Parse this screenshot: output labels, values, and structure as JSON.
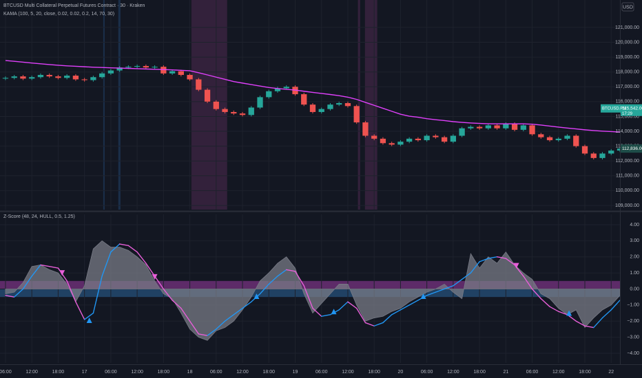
{
  "chart_data": [
    {
      "type": "candlestick",
      "title": "BTCUSD Multi Collateral Perpetual Futures Contract · 30 · Kraken",
      "currency": "USD",
      "x": [
        6,
        8,
        10,
        12,
        14,
        16,
        18,
        20,
        22,
        24,
        26,
        28,
        30,
        32,
        34,
        36,
        38,
        40,
        42,
        44,
        46,
        48,
        50,
        52,
        54,
        56,
        58,
        60,
        62,
        64,
        66,
        68,
        70,
        72,
        74,
        76,
        78,
        80,
        82,
        84,
        86,
        88,
        90,
        92,
        94,
        96,
        98,
        100,
        102,
        104,
        106,
        108,
        110,
        112,
        114,
        116,
        118,
        120,
        122,
        124,
        126,
        128,
        130,
        132,
        134,
        136,
        138,
        140,
        142,
        144,
        146
      ],
      "open": [
        117550,
        117600,
        117700,
        117550,
        117650,
        117800,
        117700,
        117600,
        117750,
        117500,
        117450,
        117650,
        117900,
        118100,
        118300,
        118350,
        118400,
        118300,
        118350,
        117900,
        118050,
        117800,
        117500,
        116800,
        116000,
        115500,
        115300,
        115200,
        115100,
        115600,
        116300,
        116700,
        116900,
        117000,
        116500,
        115800,
        115300,
        115500,
        115800,
        115900,
        115700,
        114600,
        113700,
        113500,
        113200,
        113100,
        113300,
        113500,
        113400,
        113700,
        113600,
        113300,
        113700,
        114200,
        114300,
        114200,
        114400,
        114200,
        114500,
        114100,
        114400,
        113800,
        113600,
        113400,
        113500,
        113700,
        113000,
        112500,
        112200,
        112500,
        112700
      ],
      "high": [
        117700,
        117800,
        117800,
        117750,
        117900,
        117900,
        117800,
        117850,
        117850,
        117600,
        117750,
        118000,
        118200,
        118400,
        118450,
        118500,
        118500,
        118450,
        118450,
        118150,
        118150,
        117900,
        117600,
        116900,
        116100,
        115600,
        115400,
        115300,
        115700,
        116400,
        116800,
        117000,
        117100,
        117100,
        116600,
        115900,
        115600,
        115900,
        116000,
        116000,
        115800,
        114700,
        113800,
        113600,
        113300,
        113400,
        113600,
        113600,
        113800,
        113800,
        113700,
        113800,
        114300,
        114400,
        114400,
        114500,
        114500,
        114600,
        114600,
        114500,
        114500,
        113900,
        113700,
        113600,
        113800,
        113800,
        113100,
        112600,
        112600,
        112800,
        112936
      ],
      "low": [
        117450,
        117500,
        117450,
        117450,
        117550,
        117600,
        117500,
        117500,
        117400,
        117350,
        117350,
        117550,
        117800,
        118000,
        118200,
        118250,
        118200,
        118200,
        117800,
        117800,
        117700,
        117400,
        116700,
        115900,
        115400,
        115200,
        115100,
        115000,
        115000,
        115500,
        116200,
        116600,
        116800,
        116400,
        115700,
        115200,
        115200,
        115400,
        115700,
        115600,
        114500,
        113600,
        113400,
        113100,
        113000,
        113000,
        113200,
        113300,
        113300,
        113500,
        113200,
        113200,
        113600,
        114100,
        114100,
        114100,
        114100,
        114100,
        114000,
        114000,
        113700,
        113500,
        113300,
        113300,
        113400,
        112900,
        112400,
        112100,
        112100,
        112400,
        112600
      ],
      "close": [
        117600,
        117700,
        117550,
        117650,
        117800,
        117700,
        117600,
        117750,
        117500,
        117450,
        117650,
        117900,
        118100,
        118300,
        118350,
        118400,
        118300,
        118350,
        117900,
        118050,
        117800,
        117500,
        116800,
        116000,
        115500,
        115300,
        115200,
        115100,
        115600,
        116300,
        116700,
        116900,
        117000,
        116500,
        115800,
        115300,
        115500,
        115800,
        115900,
        115700,
        114600,
        113700,
        113500,
        113200,
        113100,
        113300,
        113500,
        113400,
        113700,
        113600,
        113300,
        113700,
        114200,
        114300,
        114200,
        114400,
        114200,
        114500,
        114100,
        114400,
        113800,
        113600,
        113400,
        113500,
        113700,
        113000,
        112500,
        112200,
        112500,
        112700,
        112836
      ],
      "up_color": "#26a69a",
      "down_color": "#ef5350",
      "series": [
        {
          "name": "KAMA (100, 5, 20, close, 0.02, 0.02, 0.2, 14, 70, 30)",
          "color": "#e040fb",
          "values": [
            118770,
            118720,
            118660,
            118600,
            118550,
            118500,
            118450,
            118410,
            118380,
            118350,
            118320,
            118300,
            118280,
            118260,
            118240,
            118220,
            118200,
            118180,
            118160,
            118140,
            118110,
            118080,
            117950,
            117800,
            117650,
            117500,
            117350,
            117250,
            117150,
            117050,
            116950,
            116880,
            116830,
            116780,
            116700,
            116620,
            116550,
            116480,
            116400,
            116300,
            116150,
            115950,
            115750,
            115550,
            115350,
            115150,
            115020,
            114950,
            114850,
            114780,
            114720,
            114650,
            114600,
            114560,
            114530,
            114510,
            114500,
            114500,
            114500,
            114500,
            114480,
            114420,
            114350,
            114280,
            114220,
            114160,
            114100,
            114050,
            114010,
            113980,
            113950
          ]
        }
      ],
      "highlights": [
        {
          "from": 28.27,
          "to": 28.6,
          "color": "#1c3350"
        },
        {
          "from": 31.7,
          "to": 32.2,
          "color": "#1c3350"
        },
        {
          "from": 48.35,
          "to": 56.5,
          "color": "#3a2340"
        },
        {
          "from": 86.3,
          "to": 86.8,
          "color": "#3a2340"
        },
        {
          "from": 87.9,
          "to": 90.7,
          "color": "#3a2340"
        }
      ],
      "price_tags": [
        {
          "value": 115542,
          "label": "115,542.00",
          "name": "BTCUSD.PM",
          "time": "17:29",
          "color": "#26a69a"
        },
        {
          "value": 112836,
          "label": "112,836.00",
          "color": "#1e4d48"
        }
      ],
      "xlim": [
        4.75,
        146
      ],
      "ylim": [
        108720,
        122850
      ],
      "yticks": [
        {
          "value": 109000,
          "label": "109,000.00"
        },
        {
          "value": 110000,
          "label": "110,000.00"
        },
        {
          "value": 111000,
          "label": "111,000.00"
        },
        {
          "value": 112000,
          "label": "112,000.00"
        },
        {
          "value": 113000,
          "label": "113,000.00"
        },
        {
          "value": 114000,
          "label": "114,000.00"
        },
        {
          "value": 115000,
          "label": "115,000.00"
        },
        {
          "value": 116000,
          "label": "116,000.00"
        },
        {
          "value": 117000,
          "label": "117,000.00"
        },
        {
          "value": 118000,
          "label": "118,000.00"
        },
        {
          "value": 119000,
          "label": "119,000.00"
        },
        {
          "value": 120000,
          "label": "120,000.00"
        },
        {
          "value": 121000,
          "label": "121,000.00"
        }
      ],
      "grid": true
    },
    {
      "type": "line",
      "title": "Z-Score (48, 24, HULL, 0.5, 1.25)",
      "x": [
        6,
        8,
        10,
        12,
        14,
        16,
        18,
        20,
        22,
        24,
        26,
        28,
        30,
        32,
        34,
        36,
        38,
        40,
        42,
        44,
        46,
        48,
        50,
        52,
        54,
        56,
        58,
        60,
        62,
        64,
        66,
        68,
        70,
        72,
        74,
        76,
        78,
        80,
        82,
        84,
        86,
        88,
        90,
        92,
        94,
        96,
        98,
        100,
        102,
        104,
        106,
        108,
        110,
        112,
        114,
        116,
        118,
        120,
        122,
        124,
        126,
        128,
        130,
        132,
        134,
        136,
        138,
        140,
        142,
        144,
        146
      ],
      "series": [
        {
          "color": "#787b86",
          "area": true,
          "values": [
            -0.3,
            -0.2,
            0.4,
            1.4,
            1.5,
            1.2,
            1.0,
            0.3,
            -0.8,
            0.2,
            2.5,
            3.0,
            2.6,
            2.6,
            2.4,
            2.0,
            1.5,
            0.5,
            -0.3,
            -0.6,
            -1.5,
            -2.5,
            -3.0,
            -3.2,
            -2.6,
            -2.4,
            -2.0,
            -1.3,
            -0.5,
            0.5,
            1.0,
            1.6,
            2.0,
            1.3,
            -0.3,
            -1.5,
            -0.9,
            -0.3,
            0.3,
            0.3,
            -1.0,
            -2.0,
            -1.8,
            -1.7,
            -1.4,
            -1.2,
            -0.8,
            -0.5,
            -0.2,
            0.0,
            0.3,
            -0.2,
            -0.6,
            2.2,
            1.3,
            2.0,
            1.6,
            2.3,
            1.5,
            1.0,
            0.6,
            -0.3,
            -0.6,
            -1.2,
            -1.6,
            -1.3,
            -2.4,
            -1.8,
            -1.3,
            -1.0,
            -0.4
          ]
        },
        {
          "up_color": "#2196f3",
          "down_color": "#e75fd8",
          "area": false,
          "values": [
            -0.4,
            -0.5,
            0.0,
            0.8,
            1.5,
            1.4,
            1.3,
            0.5,
            -0.8,
            -1.9,
            -1.5,
            0.8,
            2.3,
            2.8,
            2.7,
            2.3,
            1.6,
            0.8,
            0.0,
            -0.7,
            -1.2,
            -2.0,
            -2.8,
            -2.9,
            -2.5,
            -2.0,
            -1.6,
            -1.2,
            -0.8,
            -0.3,
            0.3,
            0.8,
            1.2,
            1.1,
            0.2,
            -1.2,
            -1.7,
            -1.6,
            -1.3,
            -0.8,
            -1.2,
            -2.1,
            -2.3,
            -2.1,
            -1.6,
            -1.3,
            -1.0,
            -0.7,
            -0.4,
            -0.2,
            0.0,
            0.2,
            0.6,
            1.0,
            1.7,
            1.9,
            2.0,
            1.9,
            1.5,
            0.8,
            0.0,
            -0.6,
            -1.1,
            -1.4,
            -1.6,
            -2.0,
            -2.3,
            -2.4,
            -1.8,
            -1.3,
            -0.7
          ]
        }
      ],
      "zones": [
        {
          "from": 0,
          "to": 0.5,
          "color": "#6b2f74"
        },
        {
          "from": -0.5,
          "to": 0,
          "color": "#23496e"
        }
      ],
      "signals": [
        {
          "x": 18.9,
          "y": 1.0,
          "direction": "down",
          "color": "#e75fd8"
        },
        {
          "x": 40.0,
          "y": 0.75,
          "direction": "down",
          "color": "#e75fd8"
        },
        {
          "x": 122.4,
          "y": 1.45,
          "direction": "down",
          "color": "#e75fd8"
        },
        {
          "x": 25.1,
          "y": -1.95,
          "direction": "up",
          "color": "#2196f3"
        },
        {
          "x": 63.2,
          "y": -0.45,
          "direction": "up",
          "color": "#2196f3"
        },
        {
          "x": 80.8,
          "y": -1.4,
          "direction": "up",
          "color": "#2196f3"
        },
        {
          "x": 101.2,
          "y": -0.45,
          "direction": "up",
          "color": "#2196f3"
        },
        {
          "x": 134.4,
          "y": -1.5,
          "direction": "up",
          "color": "#2196f3"
        }
      ],
      "xlim": [
        4.75,
        146
      ],
      "ylim": [
        -4.6,
        4.64
      ],
      "yticks": [
        {
          "value": 4,
          "label": "4.00"
        },
        {
          "value": 3,
          "label": "3.00"
        },
        {
          "value": 2,
          "label": "2.00"
        },
        {
          "value": 1,
          "label": "1.00"
        },
        {
          "value": 0,
          "label": "0.00"
        },
        {
          "value": -1,
          "label": "−1.00"
        },
        {
          "value": -2,
          "label": "−2.00"
        },
        {
          "value": -3,
          "label": "−3.00"
        },
        {
          "value": -4,
          "label": "−4.00"
        }
      ],
      "xticks": [
        {
          "value": 6,
          "label": "06:00"
        },
        {
          "value": 12,
          "label": "12:00"
        },
        {
          "value": 18,
          "label": "18:00"
        },
        {
          "value": 24,
          "label": "17"
        },
        {
          "value": 30,
          "label": "06:00"
        },
        {
          "value": 36,
          "label": "12:00"
        },
        {
          "value": 42,
          "label": "18:00"
        },
        {
          "value": 48,
          "label": "18"
        },
        {
          "value": 54,
          "label": "06:00"
        },
        {
          "value": 60,
          "label": "12:00"
        },
        {
          "value": 66,
          "label": "18:00"
        },
        {
          "value": 72,
          "label": "19"
        },
        {
          "value": 78,
          "label": "06:00"
        },
        {
          "value": 84,
          "label": "12:00"
        },
        {
          "value": 90,
          "label": "18:00"
        },
        {
          "value": 96,
          "label": "20"
        },
        {
          "value": 102,
          "label": "06:00"
        },
        {
          "value": 108,
          "label": "12:00"
        },
        {
          "value": 114,
          "label": "18:00"
        },
        {
          "value": 120,
          "label": "21"
        },
        {
          "value": 126,
          "label": "06:00"
        },
        {
          "value": 132,
          "label": "12:00"
        },
        {
          "value": 138,
          "label": "18:00"
        },
        {
          "value": 144,
          "label": "22"
        }
      ],
      "grid": true
    }
  ]
}
